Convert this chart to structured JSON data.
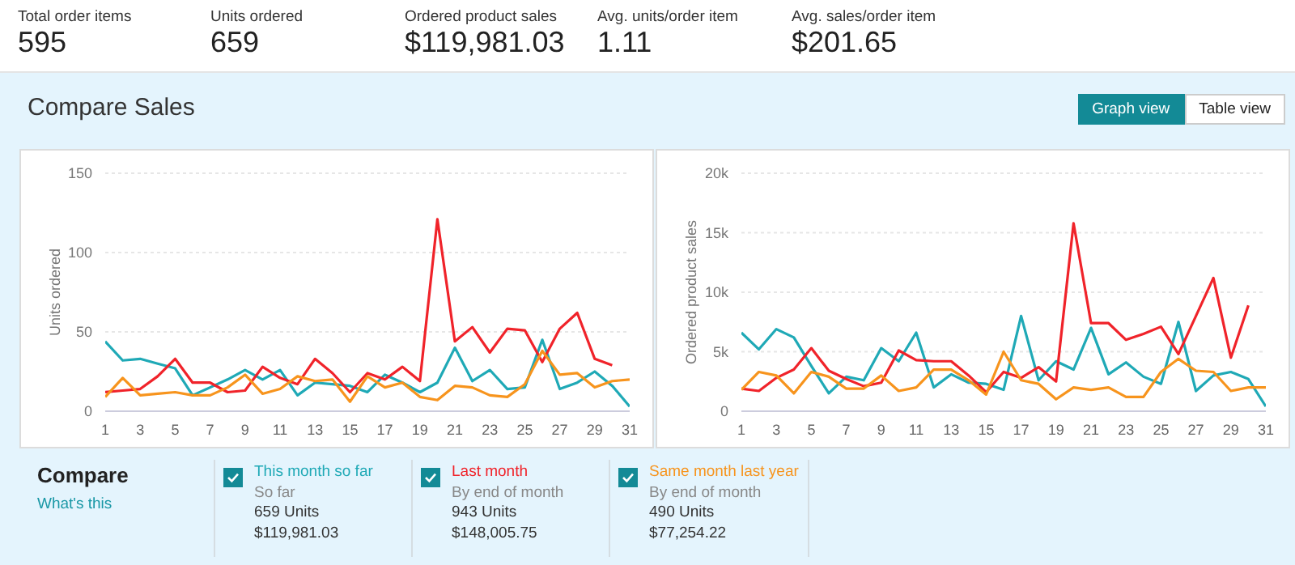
{
  "chart_data": [
    {
      "type": "other",
      "annotations": [
        "Total order items",
        "595",
        "Units ordered",
        "659",
        "Ordered product sales",
        "$119,981.03",
        "Avg. units/order item",
        "1.11",
        "Avg. sales/order item",
        "$201.65"
      ]
    },
    {
      "type": "other",
      "title": "Compare Sales",
      "annotations": [
        "Graph view",
        "Table view"
      ]
    },
    {
      "type": "line",
      "ylabel": "Units ordered",
      "x": [
        1,
        2,
        3,
        4,
        5,
        6,
        7,
        8,
        9,
        10,
        11,
        12,
        13,
        14,
        15,
        16,
        17,
        18,
        19,
        20,
        21,
        22,
        23,
        24,
        25,
        26,
        27,
        28,
        29,
        30,
        31
      ],
      "xlim": [
        1,
        31
      ],
      "xticks": [
        1,
        3,
        5,
        7,
        9,
        11,
        13,
        15,
        17,
        19,
        21,
        23,
        25,
        27,
        29,
        31
      ],
      "ylim": [
        0,
        150
      ],
      "yticks": [
        0,
        50,
        100,
        150
      ],
      "grid": "y",
      "series": [
        {
          "name": "This month so far",
          "color": "#1fa9b6",
          "values": [
            44,
            32,
            33,
            30,
            27,
            10,
            15,
            20,
            26,
            20,
            26,
            10,
            18,
            17,
            16,
            12,
            23,
            18,
            12,
            18,
            40,
            19,
            26,
            14,
            15,
            45,
            14,
            18,
            25,
            16,
            3
          ]
        },
        {
          "name": "Last month",
          "color": "#f0232a",
          "values": [
            12,
            13,
            14,
            22,
            33,
            18,
            18,
            12,
            13,
            28,
            21,
            17,
            33,
            24,
            12,
            24,
            20,
            28,
            19,
            121,
            44,
            53,
            37,
            52,
            51,
            31,
            52,
            62,
            33,
            29,
            null
          ]
        },
        {
          "name": "Same month last year",
          "color": "#f7941d",
          "values": [
            9,
            21,
            10,
            11,
            12,
            10,
            10,
            15,
            23,
            11,
            14,
            22,
            19,
            20,
            6,
            22,
            15,
            18,
            9,
            7,
            16,
            15,
            10,
            9,
            17,
            38,
            23,
            24,
            15,
            19,
            20
          ]
        }
      ]
    },
    {
      "type": "line",
      "ylabel": "Ordered product sales",
      "x": [
        1,
        2,
        3,
        4,
        5,
        6,
        7,
        8,
        9,
        10,
        11,
        12,
        13,
        14,
        15,
        16,
        17,
        18,
        19,
        20,
        21,
        22,
        23,
        24,
        25,
        26,
        27,
        28,
        29,
        30,
        31
      ],
      "xlim": [
        1,
        31
      ],
      "xticks": [
        1,
        3,
        5,
        7,
        9,
        11,
        13,
        15,
        17,
        19,
        21,
        23,
        25,
        27,
        29,
        31
      ],
      "ylim": [
        0,
        20000
      ],
      "yticks": [
        0,
        {
          "value": 5000,
          "label": "5k"
        },
        {
          "value": 10000,
          "label": "10k"
        },
        {
          "value": 15000,
          "label": "15k"
        },
        {
          "value": 20000,
          "label": "20k"
        }
      ],
      "grid": "y",
      "series": [
        {
          "color": "#1fa9b6",
          "values": [
            6600,
            5200,
            6900,
            6200,
            3800,
            1500,
            2900,
            2600,
            5300,
            4200,
            6600,
            2000,
            3100,
            2400,
            2300,
            1800,
            8000,
            2600,
            4200,
            3500,
            7000,
            3100,
            4100,
            2900,
            2300,
            7500,
            1700,
            3000,
            3300,
            2700,
            400
          ]
        },
        {
          "color": "#f0232a",
          "values": [
            1900,
            1700,
            2800,
            3500,
            5300,
            3400,
            2700,
            2100,
            2400,
            5100,
            4300,
            4200,
            4200,
            3000,
            1600,
            3300,
            2800,
            3700,
            2500,
            15800,
            7400,
            7400,
            6000,
            6500,
            7100,
            4800,
            8000,
            11200,
            4500,
            8900,
            null
          ]
        },
        {
          "color": "#f7941d",
          "values": [
            1800,
            3300,
            3000,
            1500,
            3300,
            2900,
            1900,
            1900,
            3000,
            1700,
            2000,
            3500,
            3500,
            2600,
            1400,
            5000,
            2600,
            2300,
            1000,
            2000,
            1800,
            2000,
            1200,
            1200,
            3300,
            4400,
            3400,
            3300,
            1700,
            2000,
            2000
          ]
        }
      ]
    },
    {
      "type": "other",
      "title": "Compare",
      "annotations": [
        "What's this",
        "So far",
        "659 Units",
        "$119,981.03",
        "By end of month",
        "943 Units",
        "$148,005.75",
        "By end of month",
        "490 Units",
        "$77,254.22"
      ]
    }
  ]
}
